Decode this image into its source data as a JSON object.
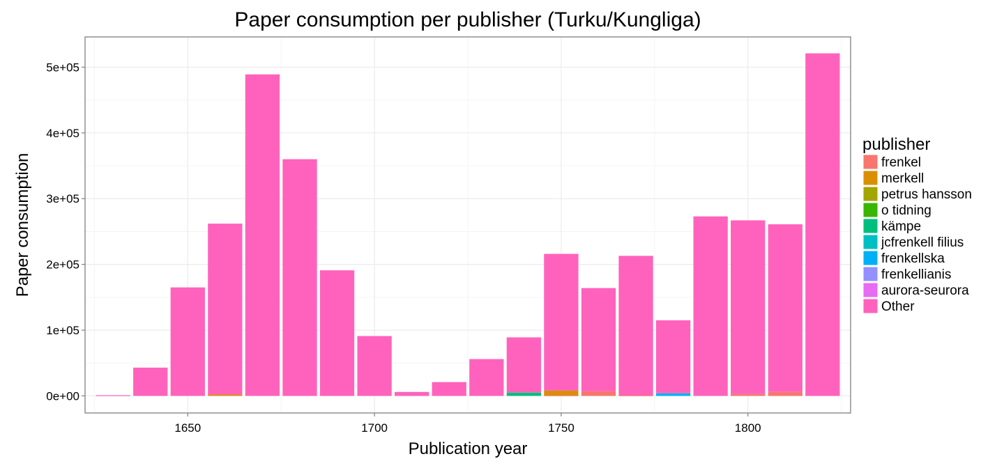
{
  "chart_data": {
    "type": "bar",
    "stacked": true,
    "title": "Paper consumption per publisher (Turku/Kungliga)",
    "xlabel": "Publication year",
    "ylabel": "Paper consumption",
    "x_ticks": [
      1650,
      1700,
      1750,
      1800
    ],
    "x_tick_labels": [
      "1650",
      "1700",
      "1750",
      "1800"
    ],
    "y_ticks": [
      0,
      100000,
      200000,
      300000,
      400000,
      500000
    ],
    "y_tick_labels": [
      "0e+00",
      "1e+05",
      "2e+05",
      "3e+05",
      "4e+05",
      "5e+05"
    ],
    "xlim": [
      1622.5,
      1827.5
    ],
    "ylim": [
      -26000,
      546000
    ],
    "bin_width": 10,
    "grid": true,
    "legend": {
      "title": "publisher",
      "position": "right",
      "entries": [
        "frenkel",
        "merkell",
        "petrus hansson",
        "o tidning",
        "kämpe",
        "jcfrenkell filius",
        "frenkellska",
        "frenkellianis",
        "aurora-seurora",
        "Other"
      ]
    },
    "series": [
      {
        "name": "frenkel",
        "color": "#F8766D",
        "values": [
          0,
          0,
          0,
          0,
          0,
          0,
          0,
          0,
          0,
          0,
          0,
          0,
          1000,
          7000,
          1000,
          0,
          0,
          3000,
          6000,
          0
        ]
      },
      {
        "name": "merkell",
        "color": "#D89000",
        "values": [
          0,
          0,
          0,
          2000,
          0,
          0,
          0,
          0,
          0,
          0,
          0,
          0,
          7000,
          0,
          0,
          0,
          0,
          0,
          0,
          0
        ]
      },
      {
        "name": "petrus hansson",
        "color": "#A3A500",
        "values": [
          0,
          0,
          0,
          0,
          0,
          0,
          0,
          0,
          0,
          0,
          0,
          0,
          0,
          0,
          0,
          0,
          0,
          0,
          0,
          0
        ]
      },
      {
        "name": "o tidning",
        "color": "#39B600",
        "values": [
          0,
          0,
          0,
          0,
          0,
          0,
          0,
          0,
          0,
          0,
          0,
          0,
          0,
          0,
          0,
          0,
          0,
          0,
          0,
          0
        ]
      },
      {
        "name": "kämpe",
        "color": "#00BF7D",
        "values": [
          0,
          0,
          0,
          0,
          0,
          0,
          0,
          0,
          0,
          0,
          0,
          5000,
          0,
          0,
          0,
          0,
          0,
          0,
          0,
          0
        ]
      },
      {
        "name": "jcfrenkell filius",
        "color": "#00BFC4",
        "values": [
          0,
          0,
          0,
          0,
          0,
          0,
          0,
          0,
          0,
          0,
          0,
          0,
          0,
          0,
          0,
          0,
          0,
          0,
          0,
          0
        ]
      },
      {
        "name": "frenkellska",
        "color": "#00B0F6",
        "values": [
          0,
          0,
          0,
          0,
          0,
          0,
          0,
          0,
          0,
          0,
          0,
          0,
          0,
          0,
          0,
          4000,
          0,
          0,
          0,
          0
        ]
      },
      {
        "name": "frenkellianis",
        "color": "#9590FF",
        "values": [
          0,
          0,
          0,
          0,
          0,
          0,
          0,
          0,
          0,
          0,
          0,
          0,
          0,
          0,
          0,
          0,
          0,
          0,
          0,
          0
        ]
      },
      {
        "name": "aurora-seurora",
        "color": "#E76BF3",
        "values": [
          0,
          0,
          0,
          0,
          0,
          0,
          0,
          0,
          0,
          0,
          0,
          0,
          0,
          0,
          0,
          0,
          0,
          0,
          0,
          0
        ]
      },
      {
        "name": "Other",
        "color": "#FF62BC",
        "values": [
          1000,
          43000,
          165000,
          260000,
          489000,
          360000,
          191000,
          91000,
          6000,
          21000,
          56000,
          84000,
          208000,
          157000,
          212000,
          111000,
          273000,
          264000,
          255000,
          521000
        ]
      }
    ],
    "x": [
      1630,
      1640,
      1650,
      1660,
      1670,
      1680,
      1690,
      1700,
      1710,
      1720,
      1730,
      1740,
      1750,
      1760,
      1770,
      1780,
      1790,
      1800,
      1810,
      1820
    ]
  }
}
